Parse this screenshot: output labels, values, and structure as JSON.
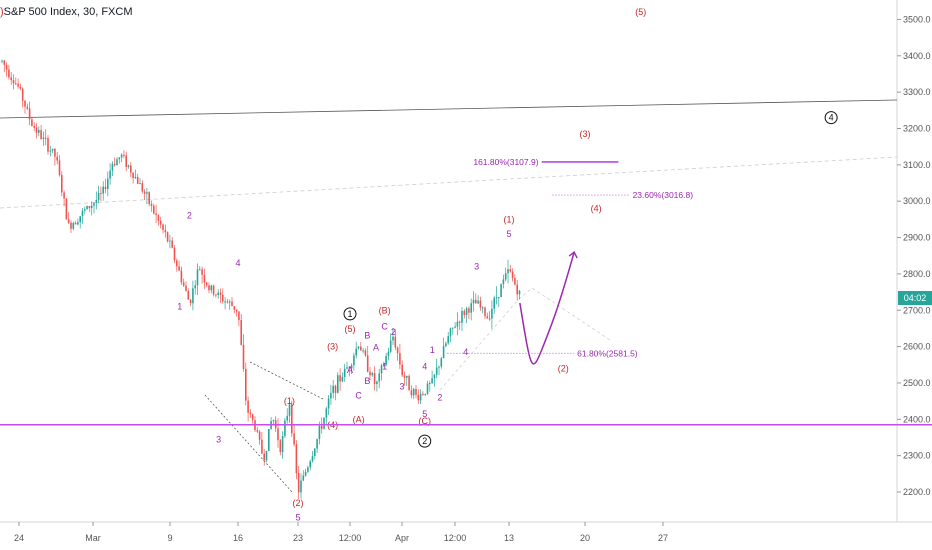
{
  "header": {
    "title": "S&P 500 Index, 30, FXCM",
    "clipped_glyph": ")"
  },
  "colors": {
    "up": "#26a69a",
    "down": "#ef5350",
    "wave_red": "#c62828",
    "wave_purple": "#9c27b0",
    "support_line": "#c64cf0",
    "trend_line": "#555555",
    "axis_text": "#555555",
    "price_tag_bg": "#26a69a"
  },
  "price_tag": {
    "value": "04:02",
    "price": 2734
  },
  "chart_data": {
    "type": "candlestick",
    "title": "S&P 500 Index, 30, FXCM",
    "xlabel": "",
    "ylabel": "",
    "ylim": [
      2140,
      3560
    ],
    "grid": false,
    "y_ticks": [
      2200.0,
      2300.0,
      2400.0,
      2500.0,
      2600.0,
      2700.0,
      2800.0,
      2900.0,
      3000.0,
      3100.0,
      3200.0,
      3300.0,
      3400.0,
      3500.0
    ],
    "x_tick_labels": [
      {
        "label": "24",
        "date": "2020-02-24"
      },
      {
        "label": "Mar",
        "date": "2020-03-01"
      },
      {
        "label": "9",
        "date": "2020-03-09"
      },
      {
        "label": "16",
        "date": "2020-03-16"
      },
      {
        "label": "23",
        "date": "2020-03-23"
      },
      {
        "label": "12:00",
        "date": "2020-03-26"
      },
      {
        "label": "Apr",
        "date": "2020-04-01"
      },
      {
        "label": "12:00",
        "date": "2020-04-08"
      },
      {
        "label": "13",
        "date": "2020-04-13"
      },
      {
        "label": "20",
        "date": "2020-04-20"
      },
      {
        "label": "27",
        "date": "2020-04-27"
      }
    ],
    "price_path": [
      {
        "date": "2020-02-21",
        "price": 3385
      },
      {
        "date": "2020-02-24",
        "price": 3310
      },
      {
        "date": "2020-02-25",
        "price": 3215
      },
      {
        "date": "2020-02-27",
        "price": 3120
      },
      {
        "date": "2020-02-28",
        "price": 2930
      },
      {
        "date": "2020-03-02",
        "price": 3020
      },
      {
        "date": "2020-03-03",
        "price": 3105
      },
      {
        "date": "2020-03-04",
        "price": 3125
      },
      {
        "date": "2020-03-06",
        "price": 3040
      },
      {
        "date": "2020-03-09",
        "price": 2880
      },
      {
        "date": "2020-03-10",
        "price": 2800
      },
      {
        "date": "2020-03-11",
        "price": 2720
      },
      {
        "date": "2020-03-12",
        "price": 2820
      },
      {
        "date": "2020-03-13",
        "price": 2760
      },
      {
        "date": "2020-03-16",
        "price": 2700
      },
      {
        "date": "2020-03-17",
        "price": 2430
      },
      {
        "date": "2020-03-18",
        "price": 2380
      },
      {
        "date": "2020-03-19",
        "price": 2290
      },
      {
        "date": "2020-03-20",
        "price": 2410
      },
      {
        "date": "2020-03-21",
        "price": 2320
      },
      {
        "date": "2020-03-22",
        "price": 2450
      },
      {
        "date": "2020-03-23",
        "price": 2200
      },
      {
        "date": "2020-03-24",
        "price": 2330
      },
      {
        "date": "2020-03-25",
        "price": 2480
      },
      {
        "date": "2020-03-26",
        "price": 2555
      },
      {
        "date": "2020-03-27",
        "price": 2610
      },
      {
        "date": "2020-03-29",
        "price": 2490
      },
      {
        "date": "2020-03-30",
        "price": 2560
      },
      {
        "date": "2020-03-31",
        "price": 2630
      },
      {
        "date": "2020-04-01",
        "price": 2530
      },
      {
        "date": "2020-04-02",
        "price": 2490
      },
      {
        "date": "2020-04-03",
        "price": 2460
      },
      {
        "date": "2020-04-04",
        "price": 2480
      },
      {
        "date": "2020-04-05",
        "price": 2500
      },
      {
        "date": "2020-04-06",
        "price": 2560
      },
      {
        "date": "2020-04-07",
        "price": 2620
      },
      {
        "date": "2020-04-08",
        "price": 2660
      },
      {
        "date": "2020-04-09",
        "price": 2700
      },
      {
        "date": "2020-04-10",
        "price": 2720
      },
      {
        "date": "2020-04-11",
        "price": 2680
      },
      {
        "date": "2020-04-12",
        "price": 2750
      },
      {
        "date": "2020-04-13",
        "price": 2810
      },
      {
        "date": "2020-04-14",
        "price": 2740
      }
    ],
    "levels": [
      {
        "label": "161.80%(3107.9)",
        "price": 3107.9,
        "from": "2020-04-16",
        "to": "2020-04-23"
      },
      {
        "label": "23.60%(3016.8)",
        "price": 3016.8,
        "from": "2020-04-17",
        "to": "2020-04-24"
      },
      {
        "label": "61.80%(2581.5)",
        "price": 2581.5,
        "from": "2020-04-07",
        "to": "2020-04-19"
      },
      {
        "label": "",
        "price": 2385,
        "from": "2020-02-21",
        "to": "2020-05-05"
      }
    ],
    "projection": [
      {
        "date": "2020-04-14",
        "price": 2720
      },
      {
        "date": "2020-04-15",
        "price": 2620
      },
      {
        "date": "2020-04-16",
        "price": 2590
      },
      {
        "date": "2020-04-17",
        "price": 2640
      },
      {
        "date": "2020-04-18",
        "price": 2760
      },
      {
        "date": "2020-04-19",
        "price": 2860
      }
    ],
    "wave_labels": [
      {
        "text": "(5)",
        "date": "2020-04-25",
        "price": 3520,
        "color": "red",
        "circled": false
      },
      {
        "text": "4",
        "date": "2020-05-02",
        "price": 3230,
        "color": "black",
        "circled": true
      },
      {
        "text": "(3)",
        "date": "2020-04-20",
        "price": 3185,
        "color": "red",
        "circled": false
      },
      {
        "text": "(4)",
        "date": "2020-04-21",
        "price": 2980,
        "color": "red",
        "circled": false
      },
      {
        "text": "(1)",
        "date": "2020-04-13",
        "price": 2950,
        "color": "red",
        "circled": false
      },
      {
        "text": "5",
        "date": "2020-04-13",
        "price": 2910,
        "color": "purple",
        "circled": false
      },
      {
        "text": "3",
        "date": "2020-04-10",
        "price": 2820,
        "color": "purple",
        "circled": false
      },
      {
        "text": "(2)",
        "date": "2020-04-18",
        "price": 2540,
        "color": "red",
        "circled": false
      },
      {
        "text": "1",
        "date": "2020-03-26",
        "price": 2690,
        "color": "black",
        "circled": true
      },
      {
        "text": "(5)",
        "date": "2020-03-26",
        "price": 2648,
        "color": "red",
        "circled": false
      },
      {
        "text": "(B)",
        "date": "2020-03-30",
        "price": 2700,
        "color": "red",
        "circled": false
      },
      {
        "text": "C",
        "date": "2020-03-30",
        "price": 2655,
        "color": "purple",
        "circled": false
      },
      {
        "text": "2",
        "date": "2020-03-31",
        "price": 2640,
        "color": "purple",
        "circled": false
      },
      {
        "text": "B",
        "date": "2020-03-28",
        "price": 2630,
        "color": "purple",
        "circled": false
      },
      {
        "text": "(3)",
        "date": "2020-03-25",
        "price": 2600,
        "color": "red",
        "circled": false
      },
      {
        "text": "A",
        "date": "2020-03-29",
        "price": 2598,
        "color": "purple",
        "circled": false
      },
      {
        "text": "A",
        "date": "2020-03-26",
        "price": 2535,
        "color": "purple",
        "circled": false
      },
      {
        "text": "1",
        "date": "2020-03-30",
        "price": 2545,
        "color": "purple",
        "circled": false
      },
      {
        "text": "B",
        "date": "2020-03-28",
        "price": 2505,
        "color": "purple",
        "circled": false
      },
      {
        "text": "C",
        "date": "2020-03-27",
        "price": 2465,
        "color": "purple",
        "circled": false
      },
      {
        "text": "3",
        "date": "2020-04-01",
        "price": 2490,
        "color": "purple",
        "circled": false
      },
      {
        "text": "4",
        "date": "2020-04-04",
        "price": 2545,
        "color": "purple",
        "circled": false
      },
      {
        "text": "1",
        "date": "2020-04-05",
        "price": 2590,
        "color": "purple",
        "circled": false
      },
      {
        "text": "4",
        "date": "2020-04-09",
        "price": 2585,
        "color": "purple",
        "circled": false
      },
      {
        "text": "2",
        "date": "2020-04-06",
        "price": 2460,
        "color": "purple",
        "circled": false
      },
      {
        "text": "5",
        "date": "2020-04-04",
        "price": 2415,
        "color": "purple",
        "circled": false
      },
      {
        "text": "(C)",
        "date": "2020-04-04",
        "price": 2395,
        "color": "red",
        "circled": false
      },
      {
        "text": "2",
        "date": "2020-04-04",
        "price": 2340,
        "color": "black",
        "circled": true
      },
      {
        "text": "(4)",
        "date": "2020-03-25",
        "price": 2385,
        "color": "red",
        "circled": false
      },
      {
        "text": "(A)",
        "date": "2020-03-27",
        "price": 2400,
        "color": "red",
        "circled": false
      },
      {
        "text": "(1)",
        "date": "2020-03-22",
        "price": 2450,
        "color": "red",
        "circled": false
      },
      {
        "text": "(2)",
        "date": "2020-03-23",
        "price": 2170,
        "color": "red",
        "circled": false
      },
      {
        "text": "5",
        "date": "2020-03-23",
        "price": 2130,
        "color": "purple",
        "circled": false
      },
      {
        "text": "2",
        "date": "2020-03-11",
        "price": 2960,
        "color": "purple",
        "circled": false
      },
      {
        "text": "4",
        "date": "2020-03-16",
        "price": 2830,
        "color": "purple",
        "circled": false
      },
      {
        "text": "1",
        "date": "2020-03-10",
        "price": 2710,
        "color": "purple",
        "circled": false
      },
      {
        "text": "3",
        "date": "2020-03-14",
        "price": 2345,
        "color": "purple",
        "circled": false
      }
    ]
  }
}
